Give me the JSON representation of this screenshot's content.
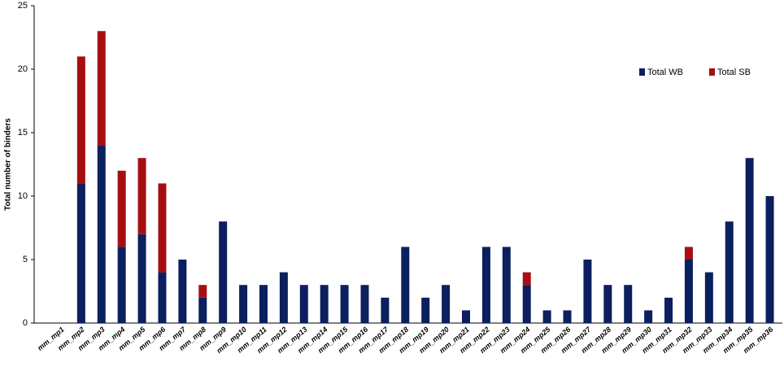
{
  "chart_data": {
    "type": "stacked_bar",
    "y_label": "Total number of binders",
    "categories": [
      "mm_mp1",
      "mm_mp2",
      "mm_mp3",
      "mm_mp4",
      "mm_mp5",
      "mm_mp6",
      "mm_mp7",
      "mm_mp8",
      "mm_mp9",
      "mm_mp10",
      "mm_mp11",
      "mm_mp12",
      "mm_mp13",
      "mm_mp14",
      "mm_mp15",
      "mm_mp16",
      "mm_mp17",
      "mm_mp18",
      "mm_mp19",
      "mm_mp20",
      "mm_mp21",
      "mm_mp22",
      "mm_mp23",
      "mm_mp24",
      "mm_mp25",
      "mm_mp26",
      "mm_mp27",
      "mm_mp28",
      "mm_mp29",
      "mm_mp30",
      "mm_mp31",
      "mm_mp32",
      "mm_mp33",
      "mm_mp34",
      "mm_mp35",
      "mm_mp36"
    ],
    "series": [
      {
        "name": "Total WB",
        "color": "#0c1f5e",
        "values": [
          0,
          11,
          14,
          6,
          7,
          4,
          5,
          2,
          8,
          3,
          3,
          4,
          3,
          3,
          3,
          3,
          2,
          6,
          2,
          3,
          1,
          6,
          6,
          3,
          1,
          1,
          5,
          3,
          3,
          1,
          2,
          5,
          4,
          8,
          13,
          10
        ]
      },
      {
        "name": "Total SB",
        "color": "#a50f12",
        "values": [
          0,
          10,
          9,
          6,
          6,
          7,
          0,
          1,
          0,
          0,
          0,
          0,
          0,
          0,
          0,
          0,
          0,
          0,
          0,
          0,
          0,
          0,
          0,
          1,
          0,
          0,
          0,
          0,
          0,
          0,
          0,
          1,
          0,
          0,
          0,
          0
        ]
      }
    ],
    "ylim": [
      0,
      25
    ],
    "yticks": [
      0,
      5,
      10,
      15,
      20,
      25
    ],
    "grid": false,
    "legend": "upper right"
  }
}
